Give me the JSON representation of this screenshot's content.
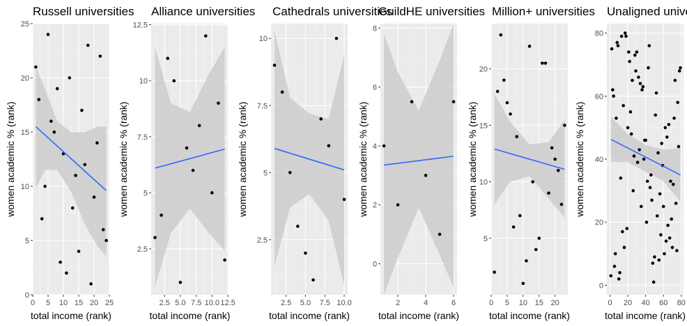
{
  "chart_data": [
    {
      "type": "scatter",
      "title": "Russell universities",
      "xlabel": "total income (rank)",
      "ylabel": "women academic % (rank)",
      "xlim": [
        0,
        25
      ],
      "ylim": [
        0,
        25
      ],
      "xticks": [
        0,
        5,
        10,
        15,
        20,
        25
      ],
      "yticks": [
        0,
        5,
        10,
        15,
        20,
        25
      ],
      "x": [
        1,
        2,
        3,
        4,
        5,
        6,
        7,
        8,
        9,
        10,
        11,
        12,
        13,
        14,
        15,
        16,
        17,
        18,
        19,
        20,
        21,
        22,
        23,
        24
      ],
      "y": [
        21,
        18,
        7,
        10,
        24,
        16,
        15,
        19,
        3,
        13,
        2,
        20,
        8,
        11,
        4,
        17,
        12,
        23,
        1,
        9,
        14,
        22,
        6,
        5
      ],
      "trend": {
        "x": [
          1,
          24
        ],
        "y": [
          15.5,
          9.6
        ]
      },
      "band": {
        "x": [
          1,
          4,
          8,
          12.5,
          17,
          21,
          24
        ],
        "lower": [
          9.8,
          11.5,
          11.5,
          9.5,
          6.5,
          4.5,
          3.5
        ],
        "upper": [
          21,
          19,
          16,
          15,
          15,
          15.5,
          15.5
        ]
      },
      "grid": true
    },
    {
      "type": "scatter",
      "title": "Alliance universities",
      "xlabel": "total income (rank)",
      "ylabel": "women academic % (rank)",
      "xlim": [
        0.4,
        12.6
      ],
      "ylim": [
        0.45,
        12.55
      ],
      "xticks": [
        2.5,
        5.0,
        7.5,
        10.0,
        12.5
      ],
      "xticklabels": [
        "2.5",
        "5.0",
        "7.5",
        "10.0",
        "12.5"
      ],
      "yticks": [
        2.5,
        5.0,
        7.5,
        10.0,
        12.5
      ],
      "x": [
        1,
        2,
        3,
        4,
        5,
        6,
        7,
        8,
        9,
        10,
        11,
        12
      ],
      "y": [
        3,
        4,
        11,
        10,
        1,
        7,
        6,
        8,
        12,
        5,
        9,
        2
      ],
      "trend": {
        "x": [
          1,
          12
        ],
        "y": [
          6.1,
          6.95
        ]
      },
      "band": {
        "x": [
          1,
          3.5,
          6.5,
          9.5,
          12
        ],
        "lower": [
          0.8,
          3.2,
          4.3,
          3.2,
          2.4
        ],
        "upper": [
          11.5,
          9.0,
          8.6,
          10.3,
          11.5
        ]
      },
      "grid": true
    },
    {
      "type": "scatter",
      "title": "Cathedrals universities",
      "xlabel": "total income (rank)",
      "ylabel": "women academic % (rank)",
      "xlim": [
        0.55,
        10.45
      ],
      "ylim": [
        0.45,
        10.55
      ],
      "xticks": [
        2.5,
        5.0,
        7.5,
        10.0
      ],
      "xticklabels": [
        "2.5",
        "5.0",
        "7.5",
        "10.0"
      ],
      "yticks": [
        2.5,
        5.0,
        7.5,
        10.0
      ],
      "x": [
        1,
        2,
        3,
        4,
        5,
        6,
        7,
        8,
        9,
        10
      ],
      "y": [
        9,
        8,
        5,
        3,
        2,
        1,
        7,
        6,
        10,
        4
      ],
      "trend": {
        "x": [
          1,
          10
        ],
        "y": [
          5.9,
          5.1
        ]
      },
      "band": {
        "x": [
          1,
          3,
          5.5,
          8,
          10
        ],
        "lower": [
          1.5,
          3.7,
          4.2,
          3.2,
          0.8
        ],
        "upper": [
          10.3,
          7.8,
          7.2,
          7.0,
          9.4
        ]
      },
      "grid": true
    },
    {
      "type": "scatter",
      "title": "GuildHE universities",
      "xlabel": "total income (rank)",
      "ylabel": "women academic % (rank)",
      "xlim": [
        0.75,
        6.25
      ],
      "ylim": [
        -1.05,
        8.15
      ],
      "xticks": [
        2,
        4,
        6
      ],
      "yticks": [
        0,
        2,
        4,
        6,
        8
      ],
      "x": [
        1,
        2,
        3,
        4,
        5,
        6
      ],
      "y": [
        4,
        2,
        5.5,
        3,
        1,
        5.5
      ],
      "trend": {
        "x": [
          1,
          6
        ],
        "y": [
          3.35,
          3.65
        ]
      },
      "band": {
        "x": [
          1,
          2,
          3.5,
          5,
          6
        ],
        "lower": [
          -1.05,
          0.2,
          1.9,
          0.3,
          -0.8
        ],
        "upper": [
          7.8,
          6.5,
          5.2,
          6.9,
          8.15
        ]
      },
      "grid": true
    },
    {
      "type": "scatter",
      "title": "Million+ universities",
      "xlabel": "total income (rank)",
      "ylabel": "women academic % (rank)",
      "xlim": [
        0,
        24
      ],
      "ylim": [
        0,
        24
      ],
      "xticks": [
        0,
        5,
        10,
        15,
        20
      ],
      "yticks": [
        5,
        10,
        15,
        20
      ],
      "x": [
        1,
        2,
        3,
        4,
        5,
        6,
        7,
        8,
        9,
        10,
        11,
        12,
        13,
        14,
        15,
        16,
        17,
        18,
        19,
        20,
        21,
        22,
        23
      ],
      "y": [
        2,
        18,
        23,
        19,
        17,
        16,
        6,
        14,
        7,
        1,
        3,
        22,
        10,
        4,
        5,
        20.5,
        20.5,
        9,
        13,
        12,
        11,
        8,
        15
      ],
      "trend": {
        "x": [
          1,
          23
        ],
        "y": [
          12.9,
          11.1
        ]
      },
      "band": {
        "x": [
          1,
          6,
          12,
          18,
          23
        ],
        "lower": [
          8.0,
          10.0,
          10.5,
          8.5,
          6.8
        ],
        "upper": [
          17.8,
          15.3,
          13.3,
          13.5,
          15.5
        ]
      },
      "grid": true
    },
    {
      "type": "scatter",
      "title": "Unaligned universities",
      "xlabel": "total income (rank)",
      "ylabel": "women academic % (rank)",
      "xlim": [
        -3.5,
        82.5
      ],
      "ylim": [
        -3,
        83
      ],
      "xticks": [
        0,
        20,
        40,
        60,
        80
      ],
      "yticks": [
        0,
        20,
        40,
        60,
        80
      ],
      "x": [
        1,
        2,
        3,
        4,
        5,
        6,
        7,
        8,
        9,
        10,
        11,
        12,
        13,
        14,
        15,
        16,
        17,
        18,
        19,
        20,
        21,
        22,
        23,
        24,
        25,
        26,
        27,
        28,
        29,
        30,
        31,
        32,
        33,
        34,
        35,
        36,
        37,
        38,
        39,
        40,
        41,
        42,
        43,
        44,
        45,
        46,
        47,
        48,
        49,
        50,
        51,
        52,
        53,
        54,
        55,
        56,
        57,
        58,
        59,
        60,
        61,
        62,
        63,
        64,
        65,
        66,
        67,
        68,
        69,
        70,
        71,
        72,
        73,
        74,
        75,
        76,
        77,
        78,
        79
      ],
      "y": [
        3,
        75,
        62,
        60,
        6,
        10,
        53,
        77,
        76,
        2,
        4,
        34,
        79,
        17,
        57,
        12,
        80,
        79,
        18,
        50,
        74,
        71,
        55,
        48,
        65,
        30,
        41,
        73,
        68,
        74,
        39,
        66,
        43,
        64,
        25,
        62,
        63,
        40,
        46,
        46,
        20,
        33,
        69,
        76,
        31,
        35,
        27,
        7,
        1,
        9,
        54,
        61,
        22,
        42,
        8,
        29,
        16,
        45,
        38,
        25,
        10,
        50,
        14,
        47,
        19,
        51,
        15,
        33,
        21,
        12,
        32,
        53,
        65,
        26,
        11,
        58,
        44,
        68,
        69
      ],
      "trend": {
        "x": [
          1,
          79
        ],
        "y": [
          46.3,
          35.0
        ]
      },
      "band": {
        "x": [
          1,
          20,
          40,
          60,
          79
        ],
        "lower": [
          39.2,
          39.0,
          36.0,
          33.0,
          26.5
        ],
        "upper": [
          53.5,
          48.0,
          44.5,
          43.0,
          43.5
        ]
      },
      "grid": true
    }
  ],
  "colors": {
    "panel_background": "#ebebeb",
    "gridline_major": "#ffffff",
    "confidence_band": "#cccccc",
    "trend_line": "#3366ff",
    "points": "#000000",
    "tick_label": "#4d4d4d",
    "tick_mark": "#333333"
  }
}
